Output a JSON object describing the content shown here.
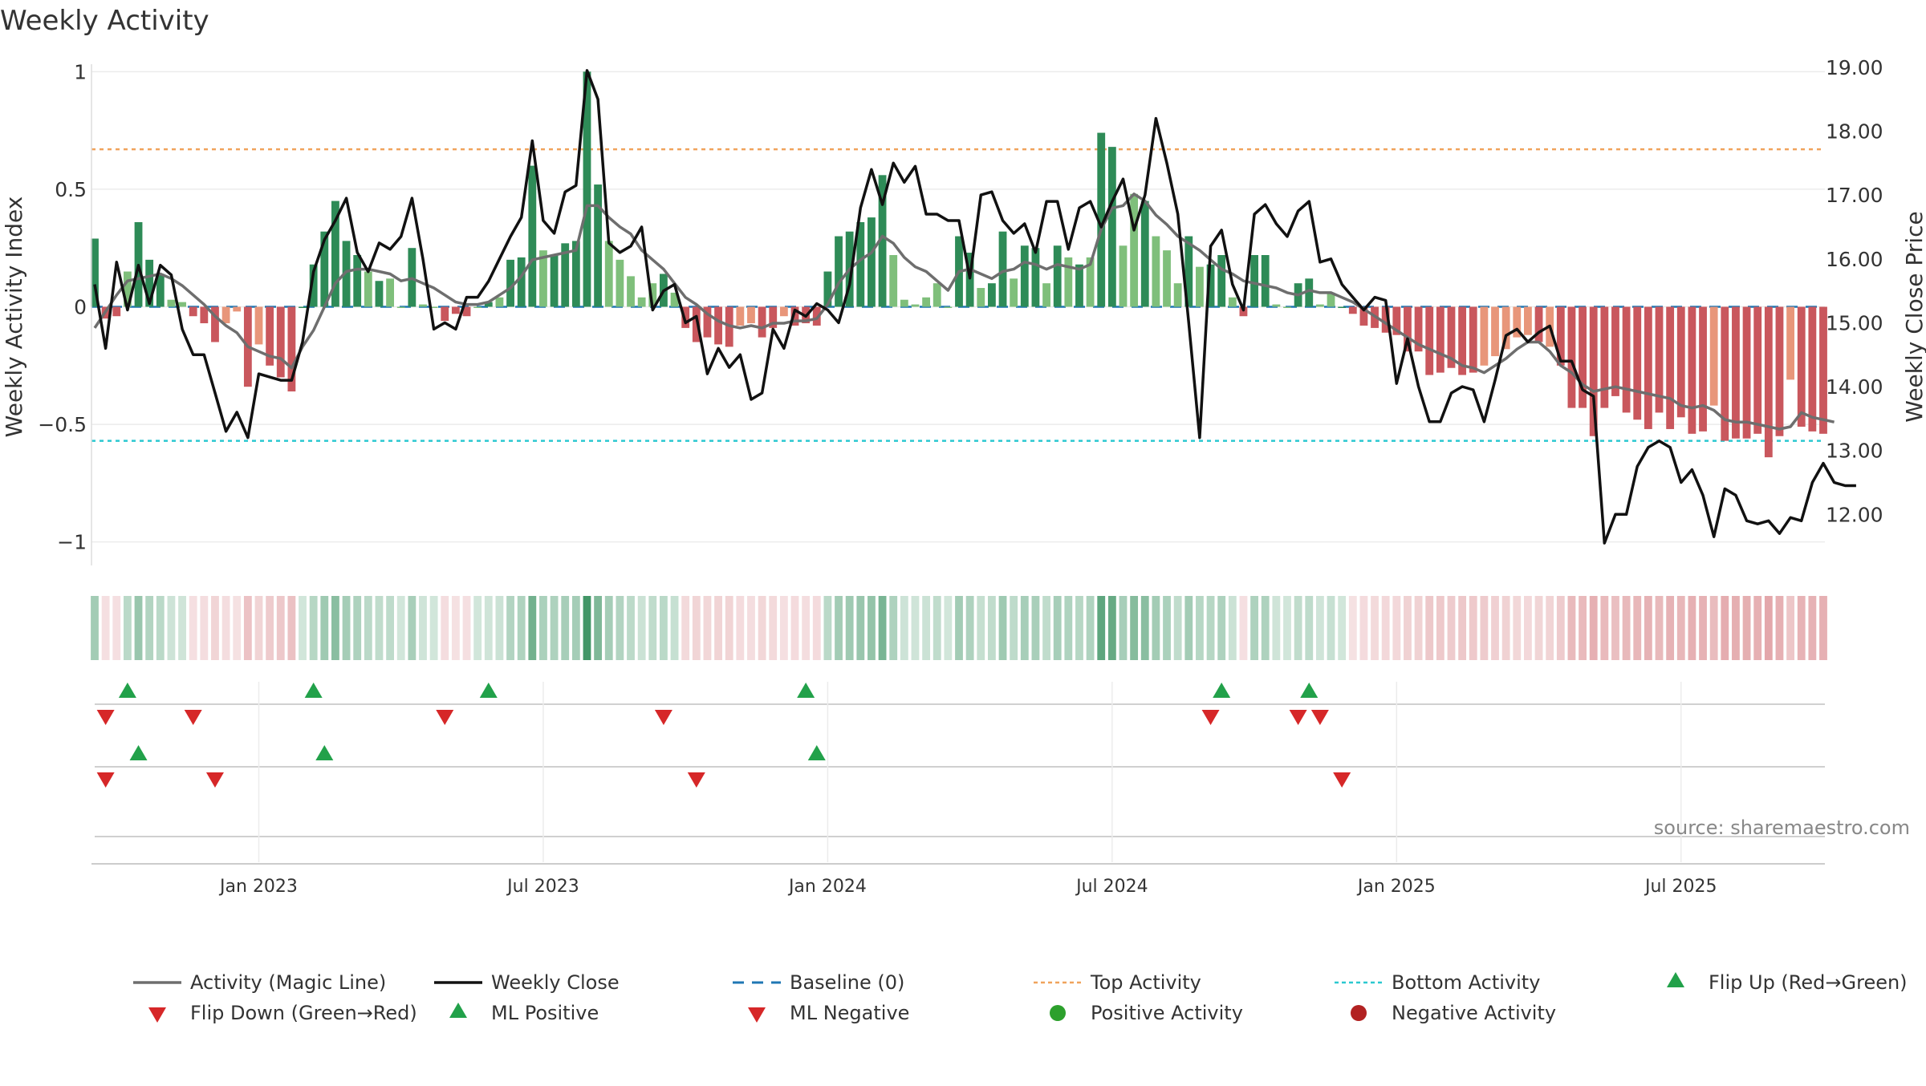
{
  "colors": {
    "strong_green": "#2e8b57",
    "light_green": "#7fbf7b",
    "strong_red": "#c9575d",
    "light_red": "#e8967a",
    "magic_line": "#6e6e6e",
    "close_line": "#111111",
    "baseline": "#1f77b4",
    "top_line": "#f0a35c",
    "bottom_line": "#2bc8d0",
    "marker_up": "#22a14a",
    "marker_down": "#d62728",
    "pos_dot": "#2ca02c",
    "neg_dot": "#b22222"
  },
  "chart_data": {
    "type": "bar",
    "title": "Weekly Activity",
    "source": "source: sharemaestro.com",
    "ylabel_left": "Weekly Activity Index",
    "ylabel_right": "Weekly Close Price",
    "ylim_left": [
      -1.1,
      1.1
    ],
    "ylim_right": [
      11.2,
      19.3
    ],
    "yticks_left": [
      {
        "value": 1,
        "label": "1"
      },
      {
        "value": 0.5,
        "label": "0.5"
      },
      {
        "value": 0,
        "label": "0"
      },
      {
        "value": -0.5,
        "label": "−0.5"
      },
      {
        "value": -1,
        "label": "−1"
      }
    ],
    "yticks_right": [
      {
        "value": 19,
        "label": "19.00"
      },
      {
        "value": 18,
        "label": "18.00"
      },
      {
        "value": 17,
        "label": "17.00"
      },
      {
        "value": 16,
        "label": "16.00"
      },
      {
        "value": 15,
        "label": "15.00"
      },
      {
        "value": 14,
        "label": "14.00"
      },
      {
        "value": 13,
        "label": "13.00"
      },
      {
        "value": 12,
        "label": "12.00"
      }
    ],
    "xticks": [
      {
        "week": 15,
        "label": "Jan 2023"
      },
      {
        "week": 41,
        "label": "Jul 2023"
      },
      {
        "week": 67,
        "label": "Jan 2024"
      },
      {
        "week": 93,
        "label": "Jul 2024"
      },
      {
        "week": 119,
        "label": "Jan 2025"
      },
      {
        "week": 145,
        "label": "Jul 2025"
      }
    ],
    "top_activity": 0.67,
    "bottom_activity": -0.57,
    "activity": [
      0.29,
      -0.05,
      -0.04,
      0.15,
      0.36,
      0.2,
      0.14,
      0.03,
      0.02,
      -0.04,
      -0.07,
      -0.15,
      -0.07,
      -0.02,
      -0.34,
      -0.16,
      -0.25,
      -0.3,
      -0.36,
      0,
      0.18,
      0.32,
      0.45,
      0.28,
      0.22,
      0.15,
      0.11,
      0.12,
      0,
      0.25,
      0.01,
      0,
      -0.06,
      -0.03,
      -0.04,
      0,
      0.02,
      0.04,
      0.2,
      0.21,
      0.6,
      0.24,
      0.22,
      0.27,
      0.28,
      1.0,
      0.52,
      0.28,
      0.2,
      0.13,
      0.04,
      0.1,
      0.14,
      0.06,
      -0.09,
      -0.15,
      -0.13,
      -0.16,
      -0.17,
      -0.08,
      -0.07,
      -0.13,
      -0.09,
      -0.04,
      -0.08,
      -0.07,
      -0.08,
      0.15,
      0.3,
      0.32,
      0.36,
      0.38,
      0.56,
      0.22,
      0.03,
      0.01,
      0.04,
      0.1,
      0,
      0.3,
      0.23,
      0.08,
      0.1,
      0.32,
      0.12,
      0.26,
      0.25,
      0.1,
      0.26,
      0.21,
      0.18,
      0.21,
      0.74,
      0.68,
      0.26,
      0.48,
      0.45,
      0.3,
      0.24,
      0.1,
      0.3,
      0.17,
      0.18,
      0.22,
      0.04,
      -0.04,
      0.22,
      0.22,
      0.01,
      0,
      0.1,
      0.12,
      0.01,
      0.06,
      0,
      -0.03,
      -0.08,
      -0.09,
      -0.11,
      -0.12,
      -0.19,
      -0.19,
      -0.29,
      -0.28,
      -0.26,
      -0.29,
      -0.28,
      -0.25,
      -0.21,
      -0.18,
      -0.13,
      -0.12,
      -0.15,
      -0.17,
      -0.25,
      -0.43,
      -0.43,
      -0.55,
      -0.43,
      -0.38,
      -0.45,
      -0.48,
      -0.52,
      -0.45,
      -0.52,
      -0.47,
      -0.54,
      -0.53,
      -0.42,
      -0.57,
      -0.56,
      -0.56,
      -0.54,
      -0.64,
      -0.55,
      -0.31,
      -0.51,
      -0.53,
      -0.54
    ],
    "magic_line": [
      -0.09,
      -0.02,
      0.05,
      0.11,
      0.12,
      0.13,
      0.14,
      0.12,
      0.09,
      0.05,
      0.01,
      -0.04,
      -0.08,
      -0.11,
      -0.17,
      -0.19,
      -0.21,
      -0.22,
      -0.26,
      -0.17,
      -0.1,
      0,
      0.1,
      0.15,
      0.16,
      0.16,
      0.15,
      0.14,
      0.11,
      0.12,
      0.1,
      0.08,
      0.05,
      0.02,
      0.01,
      0.01,
      0.02,
      0.05,
      0.08,
      0.13,
      0.2,
      0.21,
      0.22,
      0.23,
      0.24,
      0.43,
      0.43,
      0.38,
      0.34,
      0.31,
      0.24,
      0.2,
      0.16,
      0.1,
      0.04,
      0.01,
      -0.03,
      -0.06,
      -0.08,
      -0.09,
      -0.08,
      -0.09,
      -0.07,
      -0.07,
      -0.06,
      -0.06,
      -0.05,
      0.01,
      0.1,
      0.16,
      0.2,
      0.23,
      0.3,
      0.27,
      0.21,
      0.17,
      0.15,
      0.11,
      0.07,
      0.15,
      0.16,
      0.14,
      0.12,
      0.15,
      0.16,
      0.19,
      0.18,
      0.16,
      0.18,
      0.17,
      0.16,
      0.18,
      0.33,
      0.42,
      0.43,
      0.48,
      0.45,
      0.39,
      0.35,
      0.3,
      0.27,
      0.24,
      0.2,
      0.16,
      0.14,
      0.11,
      0.1,
      0.09,
      0.08,
      0.06,
      0.05,
      0.07,
      0.06,
      0.06,
      0.04,
      0.02,
      -0.01,
      -0.04,
      -0.07,
      -0.1,
      -0.13,
      -0.16,
      -0.18,
      -0.2,
      -0.22,
      -0.25,
      -0.26,
      -0.28,
      -0.25,
      -0.22,
      -0.18,
      -0.15,
      -0.15,
      -0.19,
      -0.25,
      -0.28,
      -0.33,
      -0.36,
      -0.35,
      -0.34,
      -0.35,
      -0.36,
      -0.37,
      -0.38,
      -0.39,
      -0.42,
      -0.43,
      -0.42,
      -0.44,
      -0.48,
      -0.49,
      -0.49,
      -0.5,
      -0.51,
      -0.52,
      -0.51,
      -0.45,
      -0.47,
      -0.48,
      -0.49
    ],
    "weekly_close": [
      15.6,
      14.6,
      15.95,
      15.2,
      15.9,
      15.3,
      15.9,
      15.75,
      14.9,
      14.5,
      14.5,
      13.9,
      13.3,
      13.6,
      13.2,
      14.2,
      14.15,
      14.1,
      14.1,
      14.7,
      15.8,
      16.3,
      16.6,
      16.95,
      16.1,
      15.8,
      16.25,
      16.15,
      16.35,
      16.95,
      16.0,
      14.9,
      15.0,
      14.9,
      15.4,
      15.4,
      15.65,
      16.0,
      16.35,
      16.65,
      17.85,
      16.6,
      16.4,
      17.05,
      17.15,
      18.95,
      18.5,
      16.25,
      16.1,
      16.2,
      16.5,
      15.2,
      15.5,
      15.6,
      15.0,
      15.1,
      14.2,
      14.6,
      14.3,
      14.5,
      13.8,
      13.9,
      14.9,
      14.6,
      15.2,
      15.1,
      15.3,
      15.2,
      15.0,
      15.6,
      16.8,
      17.4,
      16.85,
      17.5,
      17.2,
      17.45,
      16.7,
      16.7,
      16.6,
      16.6,
      15.7,
      17.0,
      17.05,
      16.6,
      16.4,
      16.55,
      16.1,
      16.9,
      16.9,
      16.15,
      16.8,
      16.9,
      16.5,
      16.9,
      17.25,
      16.45,
      17.0,
      18.2,
      17.5,
      16.7,
      15.0,
      13.2,
      16.2,
      16.45,
      15.6,
      15.2,
      16.7,
      16.85,
      16.55,
      16.35,
      16.75,
      16.9,
      15.95,
      16.0,
      15.6,
      15.4,
      15.2,
      15.4,
      15.35,
      14.05,
      14.75,
      14.0,
      13.45,
      13.45,
      13.9,
      14.0,
      13.95,
      13.45,
      14.1,
      14.8,
      14.9,
      14.7,
      14.85,
      14.95,
      14.4,
      14.4,
      13.95,
      13.85,
      11.55,
      12.0,
      12.0,
      12.75,
      13.05,
      13.15,
      13.05,
      12.5,
      12.7,
      12.3,
      11.65,
      12.4,
      12.3,
      11.9,
      11.85,
      11.9,
      11.7,
      11.95,
      11.9,
      12.5,
      12.8,
      12.5,
      12.45,
      12.45
    ],
    "heat_strip": "single row of per-week cells shaded green (positive) or red (negative) by activity strength",
    "signal_rows": [
      {
        "name": "flip",
        "up_weeks": [
          3,
          20,
          36,
          65,
          103,
          111
        ],
        "down_weeks": [
          1,
          9,
          32,
          52,
          102,
          110,
          112
        ]
      },
      {
        "name": "ml",
        "up_weeks": [
          4,
          21,
          66
        ],
        "down_weeks": [
          1,
          11,
          55,
          114
        ]
      }
    ],
    "legend": [
      {
        "key": "magic",
        "label": "Activity (Magic Line)",
        "symbol": "line-gray"
      },
      {
        "key": "close",
        "label": "Weekly Close",
        "symbol": "line-black"
      },
      {
        "key": "baseline",
        "label": "Baseline (0)",
        "symbol": "dash-blue"
      },
      {
        "key": "top",
        "label": "Top Activity",
        "symbol": "dot-orange"
      },
      {
        "key": "bottom",
        "label": "Bottom Activity",
        "symbol": "dot-cyan"
      },
      {
        "key": "flip_up",
        "label": "Flip Up (Red→Green)",
        "symbol": "tri-up"
      },
      {
        "key": "flip_down",
        "label": "Flip Down (Green→Red)",
        "symbol": "tri-down"
      },
      {
        "key": "ml_pos",
        "label": "ML Positive",
        "symbol": "tri-up"
      },
      {
        "key": "ml_neg",
        "label": "ML Negative",
        "symbol": "tri-down"
      },
      {
        "key": "pos_act",
        "label": "Positive Activity",
        "symbol": "circle-green"
      },
      {
        "key": "neg_act",
        "label": "Negative Activity",
        "symbol": "circle-red"
      }
    ]
  }
}
